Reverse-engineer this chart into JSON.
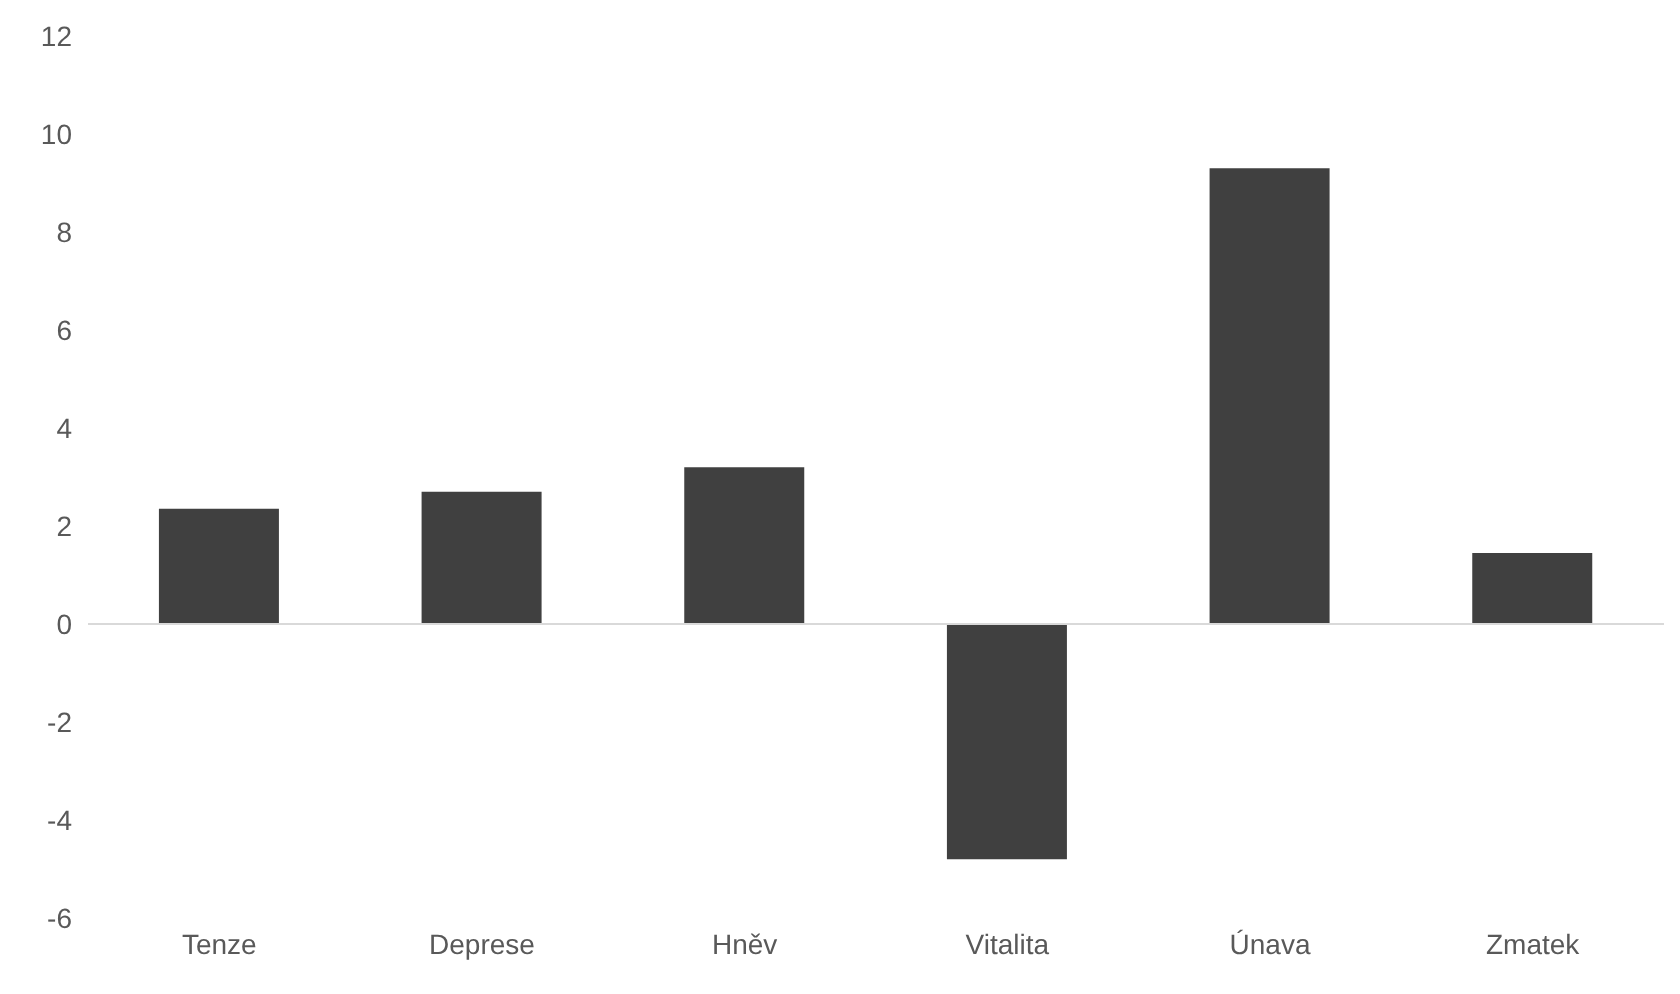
{
  "chart_data": {
    "type": "bar",
    "categories": [
      "Tenze",
      "Deprese",
      "Hněv",
      "Vitalita",
      "Únava",
      "Zmatek"
    ],
    "values": [
      2.35,
      2.7,
      3.2,
      -4.8,
      9.3,
      1.45
    ],
    "color": "#404040",
    "ylim": [
      -6,
      12
    ],
    "yticks": [
      -6,
      -4,
      -2,
      0,
      2,
      4,
      6,
      8,
      10,
      12
    ],
    "grid": false,
    "ref_lines": [
      {
        "axis": "y",
        "value": 0,
        "color": "#d9d9d9"
      }
    ]
  }
}
